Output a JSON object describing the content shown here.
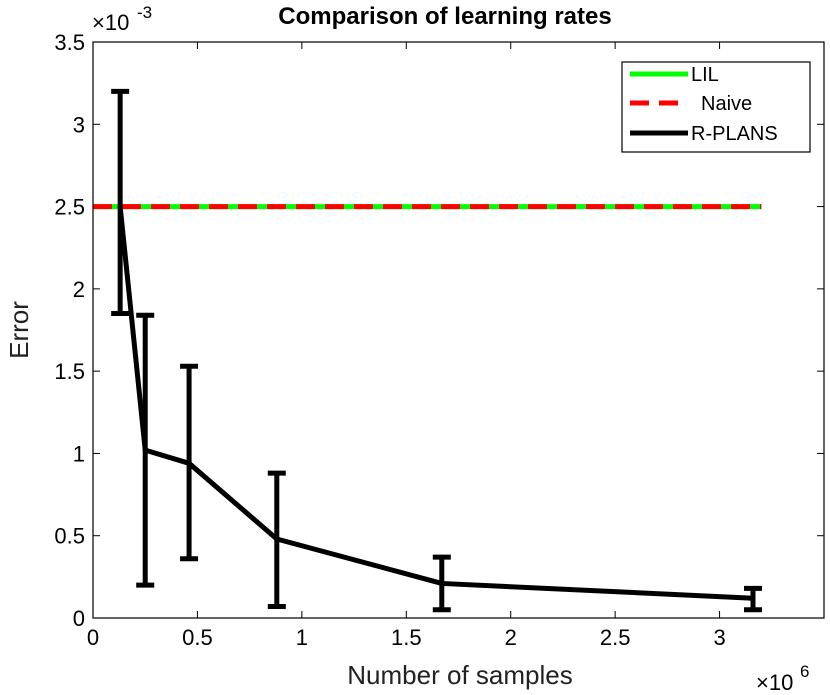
{
  "chart_data": {
    "type": "line",
    "title": "Comparison of learning rates",
    "xlabel": "Number of samples",
    "ylabel": "Error",
    "x_multiplier": {
      "base": "×10",
      "exponent": "6"
    },
    "y_multiplier": {
      "base": "×10",
      "exponent": "-3"
    },
    "xlim": [
      0,
      3.5
    ],
    "ylim": [
      0,
      3.5
    ],
    "xticks": [
      0,
      0.5,
      1,
      1.5,
      2,
      2.5,
      3
    ],
    "xtick_labels": [
      "0",
      "0.5",
      "1",
      "1.5",
      "2",
      "2.5",
      "3"
    ],
    "yticks": [
      0,
      0.5,
      1,
      1.5,
      2,
      2.5,
      3,
      3.5
    ],
    "ytick_labels": [
      "0",
      "0.5",
      "1",
      "1.5",
      "2",
      "2.5",
      "3",
      "3.5"
    ],
    "legend_position": "top-right",
    "series": [
      {
        "name": "LIL",
        "color": "#00ff00",
        "style": "solid",
        "x": [
          0,
          3.2
        ],
        "y": [
          2.5,
          2.5
        ]
      },
      {
        "name": "Naive",
        "color": "#ff0000",
        "style": "dashed",
        "x": [
          0,
          3.2
        ],
        "y": [
          2.5,
          2.5
        ]
      },
      {
        "name": "R-PLANS",
        "color": "#000000",
        "style": "solid",
        "x": [
          0.13,
          0.25,
          0.46,
          0.88,
          1.67,
          3.16
        ],
        "y": [
          2.5,
          1.02,
          0.94,
          0.48,
          0.21,
          0.12
        ],
        "err_low": [
          1.85,
          0.2,
          0.36,
          0.07,
          0.05,
          0.05
        ],
        "err_high": [
          3.2,
          1.84,
          1.53,
          0.88,
          0.37,
          0.18
        ]
      }
    ]
  }
}
